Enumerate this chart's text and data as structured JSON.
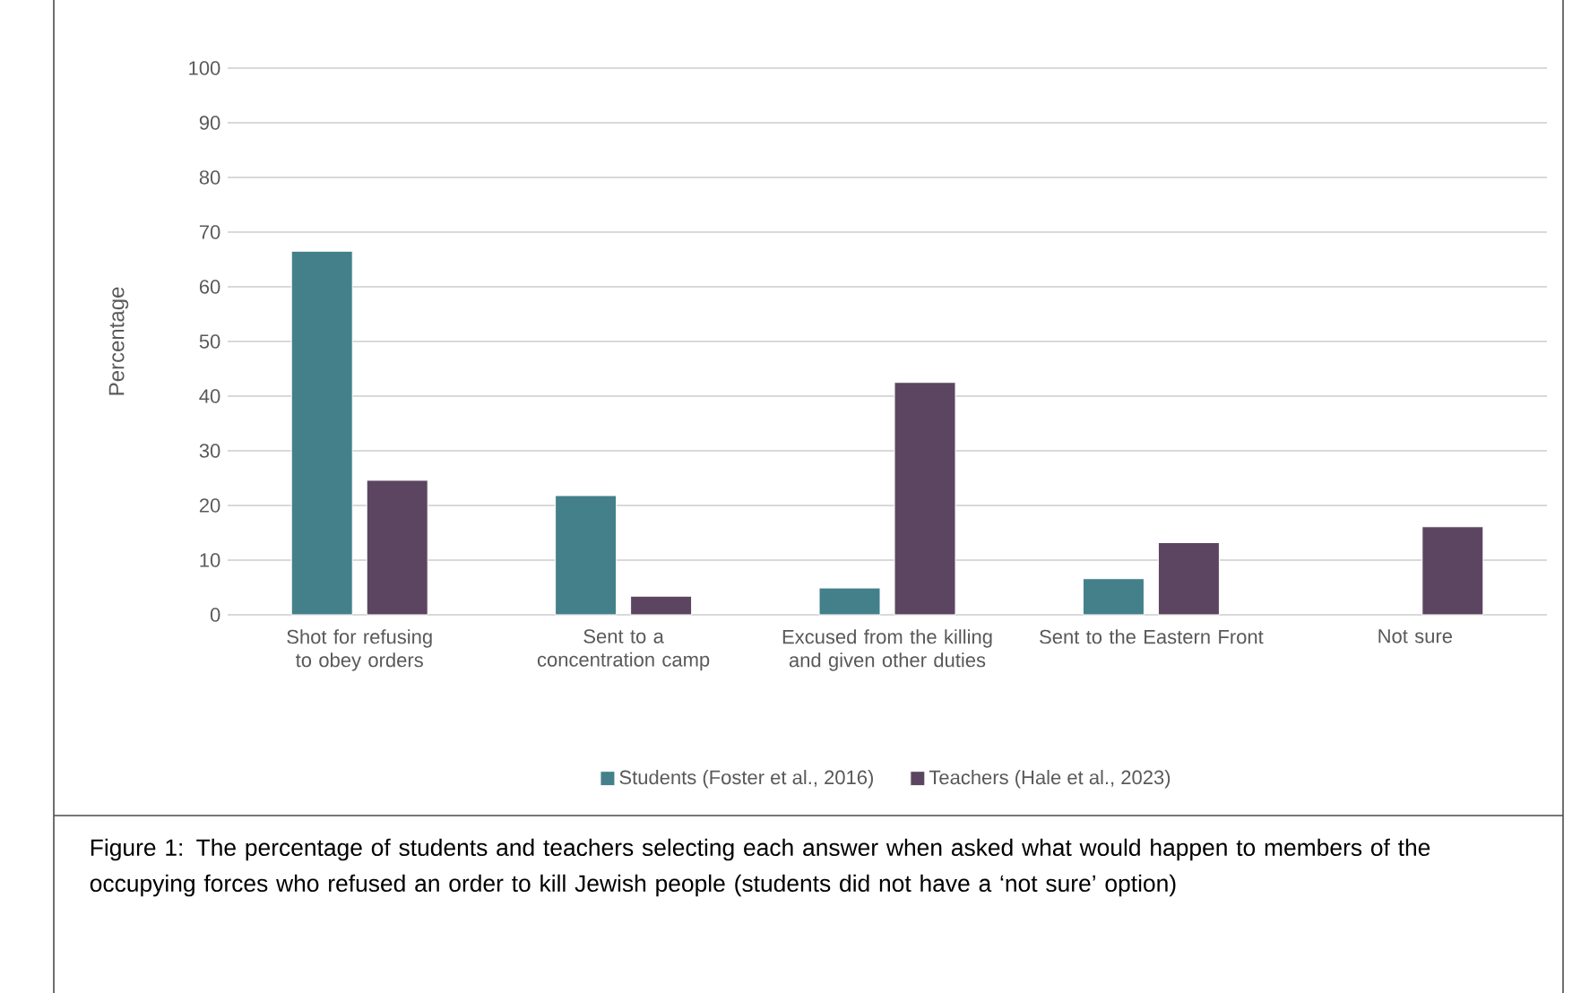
{
  "chart_data": {
    "type": "bar",
    "ylabel": "Percentage",
    "categories": [
      "Shot for refusing to obey orders",
      "Sent to a concentration camp",
      "Excused from the killing and given other duties",
      "Sent to the Eastern Front",
      "Not sure"
    ],
    "series": [
      {
        "name": "Students (Foster et al., 2016)",
        "color": "#43808a",
        "values": [
          66.5,
          21.8,
          4.9,
          6.6,
          null
        ]
      },
      {
        "name": "Teachers (Hale et al., 2023)",
        "color": "#5c4560",
        "values": [
          24.6,
          3.4,
          42.5,
          13.2,
          16.1
        ]
      }
    ],
    "ylim": [
      0,
      100
    ],
    "yticks": [
      0,
      10,
      20,
      30,
      40,
      50,
      60,
      70,
      80,
      90,
      100
    ],
    "grid": "y",
    "legend": "bottom",
    "annotations": [
      "Figure 1: The percentage of students and teachers selecting each answer when asked what would happen to members of the occupying forces who refused an order to kill Jewish people (students did not have a ‘not sure’ option)"
    ]
  }
}
